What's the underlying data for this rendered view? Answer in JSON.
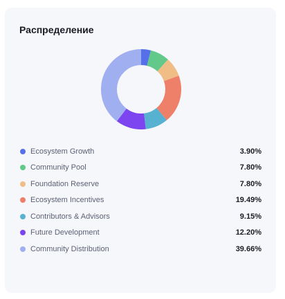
{
  "card": {
    "title": "Распределение"
  },
  "chart_data": {
    "type": "pie",
    "donut": true,
    "title": "Распределение",
    "legend_placement": "bottom",
    "series": [
      {
        "name": "Ecosystem Growth",
        "value": 3.9,
        "label": "3.90%",
        "color": "#5570e8"
      },
      {
        "name": "Community Pool",
        "value": 7.8,
        "label": "7.80%",
        "color": "#62c98a"
      },
      {
        "name": "Foundation Reserve",
        "value": 7.8,
        "label": "7.80%",
        "color": "#f0bd87"
      },
      {
        "name": "Ecosystem Incentives",
        "value": 19.49,
        "label": "19.49%",
        "color": "#ee7f68"
      },
      {
        "name": "Contributors & Advisors",
        "value": 9.15,
        "label": "9.15%",
        "color": "#56b2d0"
      },
      {
        "name": "Future Development",
        "value": 12.2,
        "label": "12.20%",
        "color": "#7d45f0"
      },
      {
        "name": "Community Distribution",
        "value": 39.66,
        "label": "39.66%",
        "color": "#9fafef"
      }
    ]
  }
}
